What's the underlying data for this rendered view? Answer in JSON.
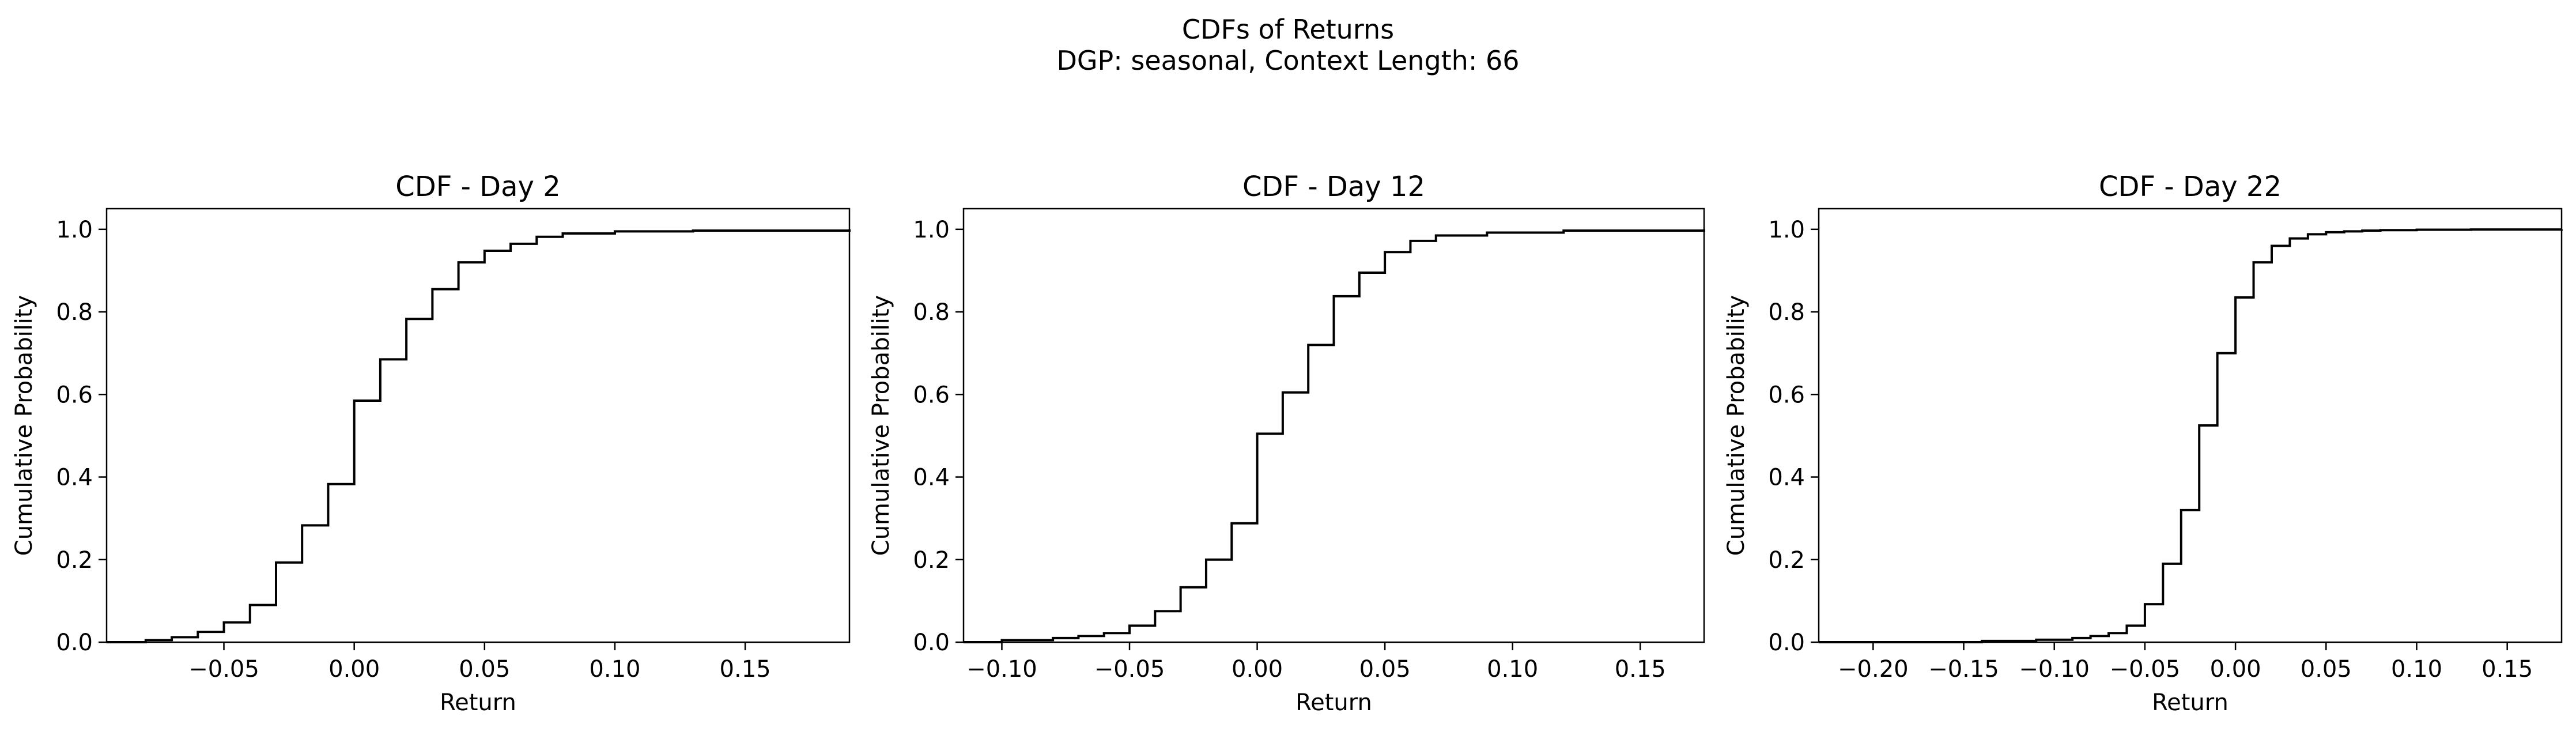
{
  "figure": {
    "title_line1": "CDFs of Returns",
    "title_line2": "DGP: seasonal, Context Length: 66"
  },
  "chart_data": [
    {
      "type": "line",
      "drawstyle": "steps-post",
      "title": "CDF - Day 2",
      "xlabel": "Return",
      "ylabel": "Cumulative Probability",
      "xlim": [
        -0.095,
        0.19
      ],
      "ylim": [
        0.0,
        1.05
      ],
      "xticks": [
        -0.05,
        0.0,
        0.05,
        0.1,
        0.15
      ],
      "xtick_labels": [
        "−0.05",
        "0.00",
        "0.05",
        "0.10",
        "0.15"
      ],
      "yticks": [
        0.0,
        0.2,
        0.4,
        0.6,
        0.8,
        1.0
      ],
      "ytick_labels": [
        "0.0",
        "0.2",
        "0.4",
        "0.6",
        "0.8",
        "1.0"
      ],
      "grid": false,
      "line_color": "#000000",
      "series": [
        {
          "x": [
            -0.095,
            -0.08,
            -0.07,
            -0.06,
            -0.05,
            -0.04,
            -0.03,
            -0.02,
            -0.01,
            0.0,
            0.01,
            0.02,
            0.03,
            0.04,
            0.05,
            0.06,
            0.07,
            0.08,
            0.1,
            0.13,
            0.19
          ],
          "y": [
            0.0,
            0.005,
            0.012,
            0.025,
            0.048,
            0.09,
            0.193,
            0.283,
            0.383,
            0.585,
            0.685,
            0.783,
            0.855,
            0.92,
            0.948,
            0.965,
            0.982,
            0.99,
            0.995,
            0.997,
            1.0
          ]
        }
      ]
    },
    {
      "type": "line",
      "drawstyle": "steps-post",
      "title": "CDF - Day 12",
      "xlabel": "Return",
      "ylabel": "Cumulative Probability",
      "xlim": [
        -0.115,
        0.175
      ],
      "ylim": [
        0.0,
        1.05
      ],
      "xticks": [
        -0.1,
        -0.05,
        0.0,
        0.05,
        0.1,
        0.15
      ],
      "xtick_labels": [
        "−0.10",
        "−0.05",
        "0.00",
        "0.05",
        "0.10",
        "0.15"
      ],
      "yticks": [
        0.0,
        0.2,
        0.4,
        0.6,
        0.8,
        1.0
      ],
      "ytick_labels": [
        "0.0",
        "0.2",
        "0.4",
        "0.6",
        "0.8",
        "1.0"
      ],
      "grid": false,
      "line_color": "#000000",
      "series": [
        {
          "x": [
            -0.115,
            -0.1,
            -0.08,
            -0.07,
            -0.06,
            -0.05,
            -0.04,
            -0.03,
            -0.02,
            -0.01,
            0.0,
            0.01,
            0.02,
            0.03,
            0.04,
            0.05,
            0.06,
            0.07,
            0.09,
            0.12,
            0.175
          ],
          "y": [
            0.0,
            0.005,
            0.01,
            0.015,
            0.022,
            0.04,
            0.075,
            0.133,
            0.2,
            0.288,
            0.505,
            0.605,
            0.72,
            0.838,
            0.895,
            0.945,
            0.972,
            0.985,
            0.992,
            0.997,
            1.0
          ]
        }
      ]
    },
    {
      "type": "line",
      "drawstyle": "steps-post",
      "title": "CDF - Day 22",
      "xlabel": "Return",
      "ylabel": "Cumulative Probability",
      "xlim": [
        -0.23,
        0.18
      ],
      "ylim": [
        0.0,
        1.05
      ],
      "xticks": [
        -0.2,
        -0.15,
        -0.1,
        -0.05,
        0.0,
        0.05,
        0.1,
        0.15
      ],
      "xtick_labels": [
        "−0.20",
        "−0.15",
        "−0.10",
        "−0.05",
        "0.00",
        "0.05",
        "0.10",
        "0.15"
      ],
      "yticks": [
        0.0,
        0.2,
        0.4,
        0.6,
        0.8,
        1.0
      ],
      "ytick_labels": [
        "0.0",
        "0.2",
        "0.4",
        "0.6",
        "0.8",
        "1.0"
      ],
      "grid": false,
      "line_color": "#000000",
      "series": [
        {
          "x": [
            -0.23,
            -0.14,
            -0.11,
            -0.09,
            -0.08,
            -0.07,
            -0.06,
            -0.05,
            -0.04,
            -0.03,
            -0.02,
            -0.01,
            0.0,
            0.01,
            0.02,
            0.03,
            0.04,
            0.05,
            0.06,
            0.07,
            0.08,
            0.1,
            0.13,
            0.18
          ],
          "y": [
            0.0,
            0.003,
            0.006,
            0.01,
            0.015,
            0.022,
            0.04,
            0.092,
            0.19,
            0.32,
            0.525,
            0.7,
            0.835,
            0.92,
            0.96,
            0.978,
            0.988,
            0.993,
            0.995,
            0.997,
            0.998,
            0.999,
            0.9995,
            1.0
          ]
        }
      ]
    }
  ]
}
